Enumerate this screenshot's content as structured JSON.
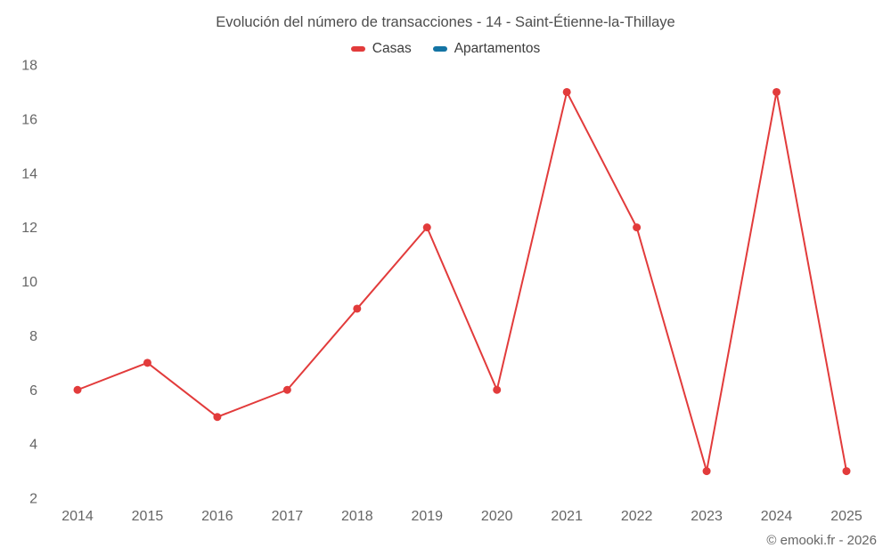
{
  "title": "Evolución del número de transacciones - 14 - Saint-Étienne-la-Thillaye",
  "footer": "© emooki.fr - 2026",
  "legend": [
    {
      "label": "Casas",
      "color": "#e23b3b"
    },
    {
      "label": "Apartamentos",
      "color": "#1474a4"
    }
  ],
  "colors": {
    "casas": "#e23b3b",
    "apartamentos": "#1474a4",
    "axis_text": "#666666",
    "title_text": "#4d4d4d"
  },
  "chart_data": {
    "type": "line",
    "title": "Evolución del número de transacciones - 14 - Saint-Étienne-la-Thillaye",
    "x": [
      2014,
      2015,
      2016,
      2017,
      2018,
      2019,
      2020,
      2021,
      2022,
      2023,
      2024,
      2025
    ],
    "series": [
      {
        "name": "Casas",
        "color": "#e23b3b",
        "values": [
          6,
          7,
          5,
          6,
          9,
          12,
          6,
          17,
          12,
          3,
          17,
          3
        ]
      },
      {
        "name": "Apartamentos",
        "color": "#1474a4",
        "values": []
      }
    ],
    "xlabel": "",
    "ylabel": "",
    "ylim": [
      2,
      18
    ],
    "yticks": [
      2,
      4,
      6,
      8,
      10,
      12,
      14,
      16,
      18
    ],
    "grid": false,
    "legend_position": "top"
  }
}
